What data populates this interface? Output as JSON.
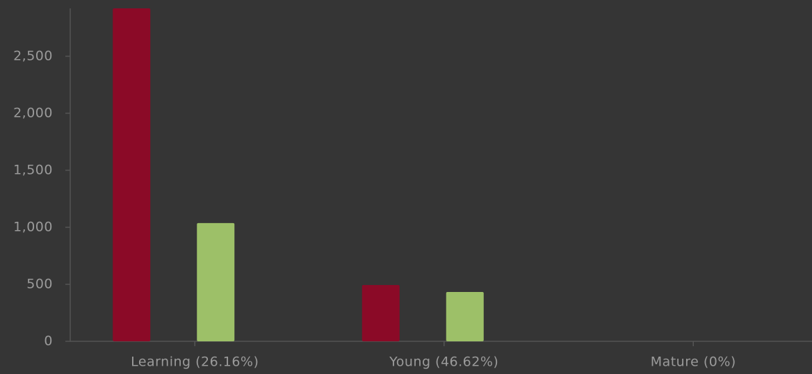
{
  "chart_data": {
    "type": "bar",
    "categories": [
      "Learning (26.16%)",
      "Young (46.62%)",
      "Mature (0%)"
    ],
    "series": [
      {
        "color": "#8b0a27",
        "values": [
          2920,
          494,
          0
        ]
      },
      {
        "color": "#9dc068",
        "values": [
          1037,
          433,
          0
        ]
      }
    ],
    "ylim": [
      0,
      2920
    ],
    "yticks": [
      0,
      500,
      {
        "value": 1000,
        "label": "1,000"
      },
      {
        "value": 1500,
        "label": "1,500"
      },
      {
        "value": 2000,
        "label": "2,000"
      },
      {
        "value": 2500,
        "label": "2,500"
      }
    ],
    "grid": false
  }
}
